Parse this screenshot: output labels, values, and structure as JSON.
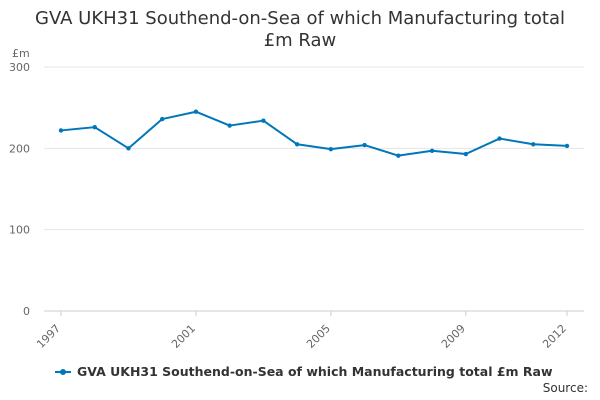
{
  "chart_data": {
    "type": "line",
    "title_line1": "GVA UKH31 Southend-on-Sea of which Manufacturing total",
    "title_line2": "£m Raw",
    "ylabel": "£m",
    "ylim": [
      0,
      300
    ],
    "yticks": [
      0,
      100,
      200,
      300
    ],
    "xticks": [
      1997,
      2001,
      2005,
      2009,
      2012
    ],
    "x": [
      1997,
      1998,
      1999,
      2000,
      2001,
      2002,
      2003,
      2004,
      2005,
      2006,
      2007,
      2008,
      2009,
      2010,
      2011,
      2012
    ],
    "series": [
      {
        "name": "GVA UKH31 Southend-on-Sea of which Manufacturing total £m Raw",
        "values": [
          222,
          226,
          200,
          236,
          245,
          228,
          234,
          205,
          199,
          204,
          191,
          197,
          193,
          212,
          205,
          203
        ]
      }
    ],
    "grid": true,
    "legend": "bottom-left",
    "color": "#0077bb"
  },
  "source_label": "Source:"
}
